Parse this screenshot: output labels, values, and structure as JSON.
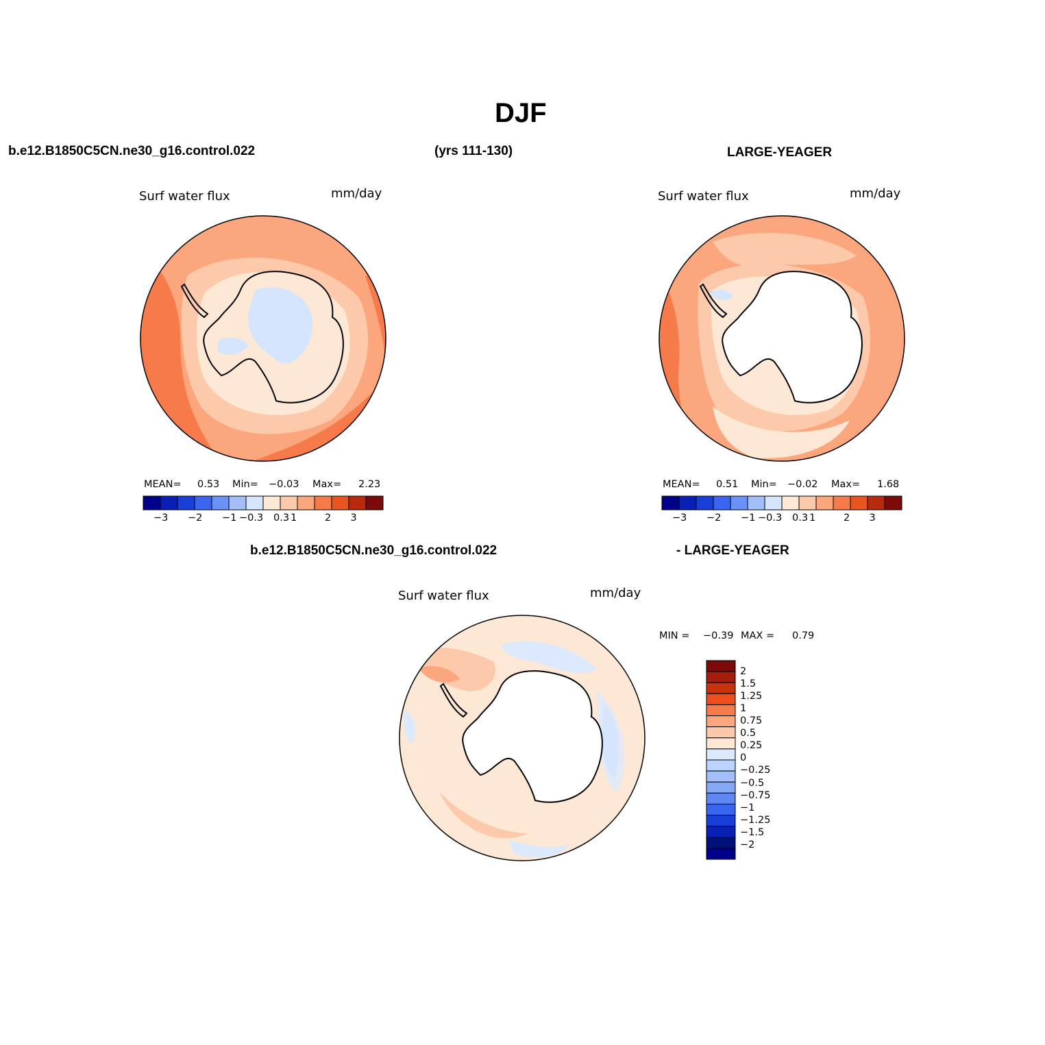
{
  "figure": {
    "title": "DJF",
    "case_name": "b.e12.B1850C5CN.ne30_g16.control.022",
    "years": "(yrs 111-130)",
    "obs_name": "LARGE-YEAGER",
    "diff_case_name": "b.e12.B1850C5CN.ne30_g16.control.022",
    "diff_obs_name": "- LARGE-YEAGER"
  },
  "panels": [
    {
      "id": "model",
      "variable": "Surf water flux",
      "units": "mm/day",
      "mean_label": "MEAN=",
      "mean": "0.53",
      "min_label": "Min=",
      "min": "-0.03",
      "max_label": "Max=",
      "max": "2.23"
    },
    {
      "id": "obs",
      "variable": "Surf water flux",
      "units": "mm/day",
      "mean_label": "MEAN=",
      "mean": "0.51",
      "min_label": "Min=",
      "min": "-0.02",
      "max_label": "Max=",
      "max": "1.68"
    },
    {
      "id": "diff",
      "variable": "Surf water flux",
      "units": "mm/day",
      "min_label": "MIN =",
      "min": "-0.39",
      "max_label": "MAX =",
      "max": "0.79"
    }
  ],
  "colorbar_h": {
    "colors": [
      "#00008b",
      "#0a1fb5",
      "#1a3fd9",
      "#3a65ee",
      "#6a91f8",
      "#a3bef9",
      "#d5e5fd",
      "#fde8d6",
      "#fcc9aa",
      "#fba67c",
      "#f77b4a",
      "#e85520",
      "#b82a0e",
      "#7c0a0a"
    ],
    "tick_labels": [
      "-3",
      "-2",
      "-1",
      "-0.3",
      "0.3",
      "1",
      "2",
      "3"
    ]
  },
  "colorbar_v": {
    "colors": [
      "#7c0a0a",
      "#a51d0e",
      "#c8320f",
      "#ec4f1c",
      "#f77b4a",
      "#fba67c",
      "#fcc9aa",
      "#fde8d6",
      "#dce9fd",
      "#bcd3fb",
      "#a3bef9",
      "#86a8f6",
      "#5f87f2",
      "#3a65ee",
      "#1a3fd9",
      "#0a1fb5",
      "#00127a",
      "#00008b"
    ],
    "tick_labels": [
      "2",
      "1.5",
      "1.25",
      "1",
      "0.75",
      "0.5",
      "0.25",
      "0",
      "-0.25",
      "-0.5",
      "-0.75",
      "-1",
      "-1.25",
      "-1.5",
      "-2"
    ]
  },
  "chart_data": {
    "type": "polar-stereographic contour maps",
    "region": "Southern Hemisphere (Antarctica)",
    "season": "DJF",
    "maps": [
      {
        "name": "b.e12.B1850C5CN.ne30_g16.control.022",
        "mean": 0.53,
        "min": -0.03,
        "max": 2.23,
        "units": "mm/day",
        "contour_levels": [
          -3,
          -2,
          -1,
          -0.3,
          0.3,
          1,
          2,
          3
        ]
      },
      {
        "name": "LARGE-YEAGER",
        "mean": 0.51,
        "min": -0.02,
        "max": 1.68,
        "units": "mm/day",
        "contour_levels": [
          -3,
          -2,
          -1,
          -0.3,
          0.3,
          1,
          2,
          3
        ]
      },
      {
        "name": "b.e12.B1850C5CN.ne30_g16.control.022 - LARGE-YEAGER",
        "min": -0.39,
        "max": 0.79,
        "units": "mm/day",
        "contour_levels": [
          -2,
          -1.5,
          -1.25,
          -1,
          -0.75,
          -0.5,
          -0.25,
          0,
          0.25,
          0.5,
          0.75,
          1,
          1.25,
          1.5,
          2
        ]
      }
    ]
  }
}
